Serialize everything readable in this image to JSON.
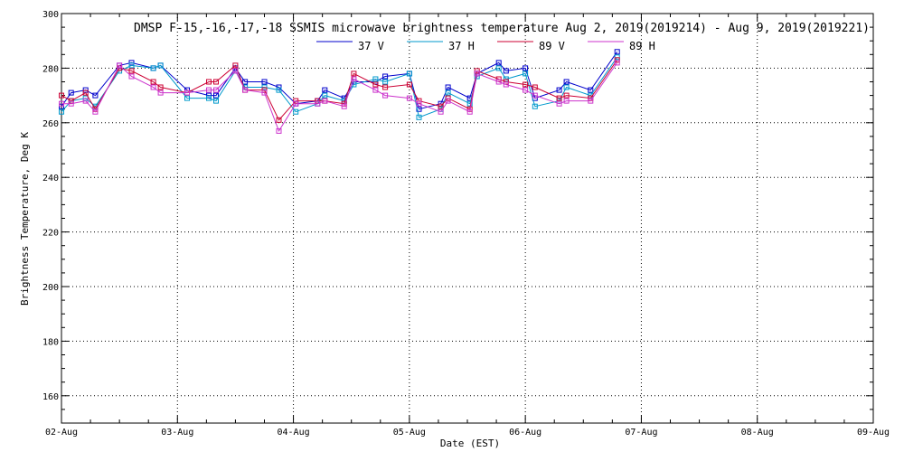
{
  "chart_data": {
    "type": "line",
    "title": "DMSP F-15,-16,-17,-18 SSMIS microwave brightness temperature Aug  2, 2019(2019214) - Aug  9, 2019(2019221)",
    "xlabel": "Date (EST)",
    "ylabel": "Brightness Temperature, Deg K",
    "xlim": [
      "2019-08-02",
      "2019-08-09"
    ],
    "ylim": [
      150,
      300
    ],
    "x_ticks": [
      "02-Aug",
      "03-Aug",
      "04-Aug",
      "05-Aug",
      "06-Aug",
      "07-Aug",
      "08-Aug",
      "09-Aug"
    ],
    "y_ticks": [
      160,
      180,
      200,
      220,
      240,
      260,
      280,
      300
    ],
    "grid": true,
    "legend_position": "top-center",
    "series": [
      {
        "name": "37 V",
        "color": "#0000cc",
        "x": [
          "2019-08-02T00:00",
          "2019-08-02T02:00",
          "2019-08-02T05:00",
          "2019-08-02T07:00",
          "2019-08-02T12:00",
          "2019-08-02T14:30",
          "2019-08-02T19:00",
          "2019-08-02T20:30",
          "2019-08-03T02:00",
          "2019-08-03T06:30",
          "2019-08-03T08:00",
          "2019-08-03T12:00",
          "2019-08-03T14:00",
          "2019-08-03T18:00",
          "2019-08-03T21:00",
          "2019-08-04T00:30",
          "2019-08-04T05:00",
          "2019-08-04T06:30",
          "2019-08-04T10:30",
          "2019-08-04T12:30",
          "2019-08-04T17:00",
          "2019-08-04T19:00",
          "2019-08-05T00:00",
          "2019-08-05T02:00",
          "2019-08-05T06:30",
          "2019-08-05T08:00",
          "2019-08-05T12:30",
          "2019-08-05T14:00",
          "2019-08-05T18:30",
          "2019-08-05T20:00",
          "2019-08-06T00:00",
          "2019-08-06T02:00",
          "2019-08-06T07:00",
          "2019-08-06T08:30",
          "2019-08-06T13:30",
          "2019-08-06T19:00"
        ],
        "values": [
          266,
          271,
          272,
          270,
          281,
          282,
          280,
          281,
          272,
          270,
          270,
          280,
          275,
          275,
          273,
          267,
          268,
          272,
          269,
          275,
          275,
          277,
          278,
          265,
          267,
          273,
          269,
          278,
          282,
          279,
          280,
          269,
          272,
          275,
          272,
          286
        ]
      },
      {
        "name": "37 H",
        "color": "#0099cc",
        "x": [
          "2019-08-02T00:00",
          "2019-08-02T02:00",
          "2019-08-02T05:00",
          "2019-08-02T07:00",
          "2019-08-02T12:00",
          "2019-08-02T14:30",
          "2019-08-02T19:00",
          "2019-08-02T20:30",
          "2019-08-03T02:00",
          "2019-08-03T06:30",
          "2019-08-03T08:00",
          "2019-08-03T12:00",
          "2019-08-03T14:00",
          "2019-08-03T18:00",
          "2019-08-03T21:00",
          "2019-08-04T00:30",
          "2019-08-04T05:00",
          "2019-08-04T06:30",
          "2019-08-04T10:30",
          "2019-08-04T12:30",
          "2019-08-04T17:00",
          "2019-08-04T19:00",
          "2019-08-05T00:00",
          "2019-08-05T02:00",
          "2019-08-05T06:30",
          "2019-08-05T08:00",
          "2019-08-05T12:30",
          "2019-08-05T14:00",
          "2019-08-05T18:30",
          "2019-08-05T20:00",
          "2019-08-06T00:00",
          "2019-08-06T02:00",
          "2019-08-06T07:00",
          "2019-08-06T08:30",
          "2019-08-06T13:30",
          "2019-08-06T19:00"
        ],
        "values": [
          264,
          268,
          269,
          266,
          279,
          281,
          280,
          281,
          269,
          269,
          268,
          279,
          273,
          273,
          272,
          264,
          267,
          270,
          268,
          274,
          276,
          275,
          278,
          262,
          265,
          271,
          267,
          277,
          280,
          276,
          278,
          266,
          268,
          273,
          270,
          284
        ]
      },
      {
        "name": "89 V",
        "color": "#cc0033",
        "x": [
          "2019-08-02T00:00",
          "2019-08-02T02:00",
          "2019-08-02T05:00",
          "2019-08-02T07:00",
          "2019-08-02T12:00",
          "2019-08-02T14:30",
          "2019-08-02T19:00",
          "2019-08-02T20:30",
          "2019-08-03T02:00",
          "2019-08-03T06:30",
          "2019-08-03T08:00",
          "2019-08-03T12:00",
          "2019-08-03T14:00",
          "2019-08-03T18:00",
          "2019-08-03T21:00",
          "2019-08-04T00:30",
          "2019-08-04T05:00",
          "2019-08-04T06:30",
          "2019-08-04T10:30",
          "2019-08-04T12:30",
          "2019-08-04T17:00",
          "2019-08-04T19:00",
          "2019-08-05T00:00",
          "2019-08-05T02:00",
          "2019-08-05T06:30",
          "2019-08-05T08:00",
          "2019-08-05T12:30",
          "2019-08-05T14:00",
          "2019-08-05T18:30",
          "2019-08-05T20:00",
          "2019-08-06T00:00",
          "2019-08-06T02:00",
          "2019-08-06T07:00",
          "2019-08-06T08:30",
          "2019-08-06T13:30",
          "2019-08-06T19:00"
        ],
        "values": [
          270,
          268,
          271,
          265,
          280,
          279,
          275,
          273,
          271,
          275,
          275,
          281,
          272,
          272,
          261,
          268,
          268,
          268,
          267,
          278,
          274,
          273,
          274,
          268,
          266,
          269,
          265,
          279,
          276,
          275,
          274,
          273,
          269,
          270,
          269,
          283
        ]
      },
      {
        "name": "89 H",
        "color": "#cc33cc",
        "x": [
          "2019-08-02T00:00",
          "2019-08-02T02:00",
          "2019-08-02T05:00",
          "2019-08-02T07:00",
          "2019-08-02T12:00",
          "2019-08-02T14:30",
          "2019-08-02T19:00",
          "2019-08-02T20:30",
          "2019-08-03T02:00",
          "2019-08-03T06:30",
          "2019-08-03T08:00",
          "2019-08-03T12:00",
          "2019-08-03T14:00",
          "2019-08-03T18:00",
          "2019-08-03T21:00",
          "2019-08-04T00:30",
          "2019-08-04T05:00",
          "2019-08-04T06:30",
          "2019-08-04T10:30",
          "2019-08-04T12:30",
          "2019-08-04T17:00",
          "2019-08-04T19:00",
          "2019-08-05T00:00",
          "2019-08-05T02:00",
          "2019-08-05T06:30",
          "2019-08-05T08:00",
          "2019-08-05T12:30",
          "2019-08-05T14:00",
          "2019-08-05T18:30",
          "2019-08-05T20:00",
          "2019-08-06T00:00",
          "2019-08-06T02:00",
          "2019-08-06T07:00",
          "2019-08-06T08:30",
          "2019-08-06T13:30",
          "2019-08-06T19:00"
        ],
        "values": [
          267,
          267,
          268,
          264,
          281,
          277,
          273,
          271,
          271,
          272,
          272,
          279,
          272,
          271,
          257,
          267,
          267,
          268,
          266,
          276,
          272,
          270,
          269,
          267,
          264,
          268,
          264,
          278,
          275,
          274,
          272,
          270,
          267,
          268,
          268,
          282
        ]
      }
    ]
  }
}
